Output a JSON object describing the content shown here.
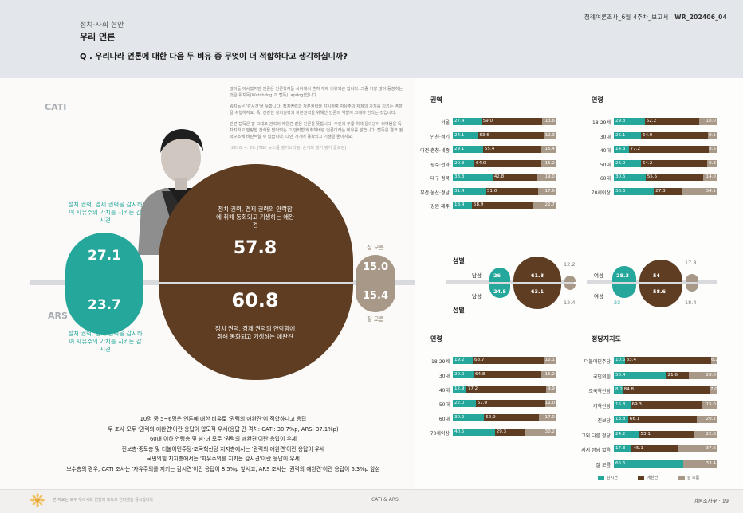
{
  "header": {
    "kicker": "정치·사회 현안",
    "title": "우리 언론",
    "question": "Q . 우리나라 언론에 대한 다음 두 비유 중 무엇이 더 적합하다고 생각하십니까?",
    "report_id_prefix": "정례여론조사_6월 4주차_보고서",
    "report_id_code": "WR_202406_04"
  },
  "modes": {
    "cati": "CATI",
    "ars": "ARS"
  },
  "quote": {
    "p1": "많이들 아시겠지만 언론은 언론학자들 사이에서 흔히 개에 비유되곤 합니다. 그중 가장 많이 등장하는 것은 워치독(Watchdog)과 랩독(Lapdog)입니다.",
    "p2": "워치독은 '감시견'을 뜻합니다. 정치권력과 자본권력을 감시하며 자유주의 체제의 가치를 지키는 역할을 수행하지요. 즉, 건강한 정치권력과 자본권력을 위해선 언론의 역할이 그래야 한다는 것입니다.",
    "p3": "반면 랩독은 말 그대로 권력의 애완견 같은 언론을 뜻합니다. 주인의 무릎 위에 올라앉아 귀여움을 독차지하고 말랑한 간식을 받아먹는 그 안락함에 취해버린 언론이라는 비유를 받습니다. 랩독은 결코 권력구조에 비판적일 수 없습니다. 다만 거기에 동화되고 기생할 뿐이지요.",
    "source": "[2016. 4. 26. JTBC 뉴스룸 앵커브리핑, 손석희 앵커 앵커 클로징]"
  },
  "main": {
    "watchdog_label": "정치 권력, 경제 권력을 감시하여 자유주의 가치를 지키는 감시견",
    "lapdog_label": "정치 권력, 경제 권력의 안락함에 취해 동화되고 기생하는 애완견",
    "dk_label": "잘 모름",
    "cati": {
      "watchdog": "27.1",
      "lapdog": "57.8",
      "dk": "15.0"
    },
    "ars": {
      "watchdog": "23.7",
      "lapdog": "60.8",
      "dk": "15.4"
    }
  },
  "region": {
    "title": "권역",
    "rows": [
      {
        "label": "서울",
        "values": [
          27.4,
          59.0,
          13.6
        ]
      },
      {
        "label": "인천·경기",
        "values": [
          24.1,
          63.6,
          12.3
        ]
      },
      {
        "label": "대전·충청·세종",
        "values": [
          29.1,
          55.4,
          15.4
        ]
      },
      {
        "label": "광주·전라",
        "values": [
          20.8,
          64.0,
          15.2
        ]
      },
      {
        "label": "대구·경북",
        "values": [
          38.3,
          42.8,
          19.0
        ]
      },
      {
        "label": "부산·울산·경남",
        "values": [
          31.4,
          51.0,
          17.6
        ]
      },
      {
        "label": "강원·제주",
        "values": [
          18.4,
          58.9,
          22.7
        ]
      }
    ]
  },
  "age_cati": {
    "title": "연령",
    "rows": [
      {
        "label": "18-29세",
        "values": [
          29.8,
          52.2,
          18.0
        ]
      },
      {
        "label": "30대",
        "values": [
          26.1,
          64.9,
          9.1
        ]
      },
      {
        "label": "40대",
        "values": [
          14.3,
          77.2,
          8.5
        ]
      },
      {
        "label": "50대",
        "values": [
          26.0,
          64.2,
          9.8
        ]
      },
      {
        "label": "60대",
        "values": [
          30.6,
          55.5,
          14.0
        ]
      },
      {
        "label": "70세이상",
        "values": [
          38.6,
          27.3,
          34.1
        ]
      }
    ]
  },
  "gender": {
    "title_top": "성별",
    "title_bottom": "성별",
    "male_label": "남성",
    "female_label": "여성",
    "male_cati": [
      26.0,
      61.8,
      12.2
    ],
    "male_ars": [
      24.5,
      63.1,
      12.4
    ],
    "female_cati": [
      28.3,
      54.0,
      17.8
    ],
    "female_ars": [
      23.0,
      58.6,
      18.4
    ]
  },
  "age_ars": {
    "title": "연령",
    "rows": [
      {
        "label": "18-29세",
        "values": [
          19.2,
          68.7,
          12.1
        ]
      },
      {
        "label": "30대",
        "values": [
          20.0,
          64.8,
          15.2
        ]
      },
      {
        "label": "40대",
        "values": [
          12.9,
          77.2,
          9.9
        ]
      },
      {
        "label": "50대",
        "values": [
          22.0,
          67.0,
          11.0
        ]
      },
      {
        "label": "60대",
        "values": [
          30.2,
          52.9,
          17.0
        ]
      },
      {
        "label": "70세이상",
        "values": [
          40.5,
          29.3,
          30.2
        ]
      }
    ]
  },
  "party": {
    "title": "정당지지도",
    "rows": [
      {
        "label": "더불어민주당",
        "values": [
          10.5,
          83.4,
          6.2
        ]
      },
      {
        "label": "국민의힘",
        "values": [
          50.4,
          21.6,
          28.0
        ]
      },
      {
        "label": "조국혁신당",
        "values": [
          8.2,
          84.8,
          7.0
        ]
      },
      {
        "label": "개혁신당",
        "values": [
          15.8,
          69.3,
          15.0
        ]
      },
      {
        "label": "진보당",
        "values": [
          13.8,
          66.1,
          20.2
        ]
      },
      {
        "label": "그외 다른 정당",
        "values": [
          24.2,
          53.1,
          22.8
        ]
      },
      {
        "label": "지지 정당 없음",
        "values": [
          17.3,
          45.1,
          37.6
        ]
      },
      {
        "label": "잘 모름",
        "values": [
          66.6,
          0,
          33.4
        ]
      }
    ]
  },
  "legend": {
    "watchdog": "감시견",
    "lapdog": "애완견",
    "dk": "잘 모름"
  },
  "summary": [
    "10명 중 5~6명은 언론에 대한 비유로 '권력의 애완견'이 적합하다고 응답",
    "두 조사 모두 '권력의 애완견'이란 응답이 압도적 우세(응답 간 격차: CATI: 30.7%p, ARS: 37.1%p)",
    "60대 이하 연령층 및 남·녀 모두 '권력의 애완견'이란 응답이 우세",
    "진보층·중도층 및 더불어민주당·조국혁신당 지지층에서는 '권력의 애완견'이란 응답이 우세",
    "국민의힘 지지층에서는 '자유주의를 지키는 감시견'이란 응답이 우세",
    "보수층의 경우, CATI 조사는 '자유주의를 지키는 감시견'이란 응답이 8.5%p 앞서고, ARS 조사는 '권력의 애완견'이란 응답이 6.3%p 앞섬"
  ],
  "footer": {
    "note": "본 자료는 모두 우리사회 연방의 보도로 인터넷을 공시합니다",
    "center": "CATI & ARS",
    "page": "여론조사꽃 · 19"
  },
  "colors": {
    "teal": "#25a79b",
    "brown": "#5e3d22",
    "grey": "#a89887"
  }
}
